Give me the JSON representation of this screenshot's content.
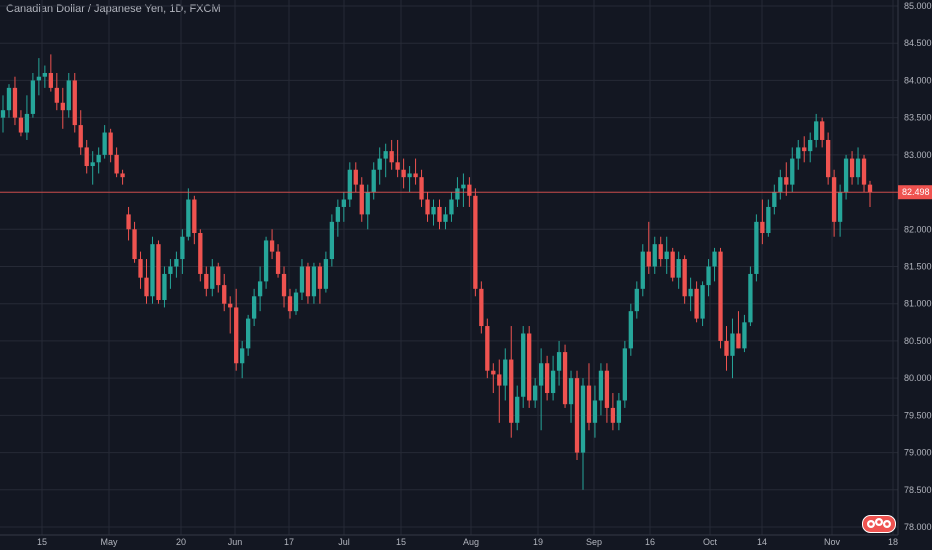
{
  "header": {
    "title": "Canadian Dollar / Japanese Yen, 1D, FXCM"
  },
  "colors": {
    "background": "#131722",
    "grid": "#262a36",
    "up": "#26a69a",
    "down": "#ef5350",
    "text": "#b2b5be",
    "price_line": "#ef5350"
  },
  "chart_data": {
    "type": "candlestick",
    "title": "Canadian Dollar / Japanese Yen, 1D, FXCM",
    "y_ticks": [
      "85.000",
      "84.500",
      "84.000",
      "83.500",
      "83.000",
      "82.500",
      "82.000",
      "81.500",
      "81.000",
      "80.500",
      "80.000",
      "79.500",
      "79.000",
      "78.500",
      "78.000"
    ],
    "ylim": [
      78.0,
      85.0
    ],
    "x_ticks": [
      "15",
      "May",
      "20",
      "Jun",
      "17",
      "Jul",
      "15",
      "Aug",
      "19",
      "Sep",
      "16",
      "Oct",
      "14",
      "Nov",
      "18"
    ],
    "last_price": "82.498",
    "grid": true,
    "candles": [
      [
        83.5,
        83.8,
        83.3,
        83.6
      ],
      [
        83.6,
        83.95,
        83.5,
        83.9
      ],
      [
        83.9,
        84.05,
        83.4,
        83.5
      ],
      [
        83.5,
        83.6,
        83.25,
        83.3
      ],
      [
        83.3,
        83.8,
        83.2,
        83.55
      ],
      [
        83.55,
        84.1,
        83.5,
        84.0
      ],
      [
        84.0,
        84.3,
        83.8,
        84.05
      ],
      [
        84.05,
        84.2,
        83.9,
        84.1
      ],
      [
        84.1,
        84.35,
        83.85,
        83.9
      ],
      [
        83.9,
        84.1,
        83.6,
        83.7
      ],
      [
        83.7,
        83.9,
        83.35,
        83.6
      ],
      [
        83.6,
        84.1,
        83.5,
        84.0
      ],
      [
        84.0,
        84.1,
        83.3,
        83.4
      ],
      [
        83.4,
        83.6,
        83.0,
        83.1
      ],
      [
        83.1,
        83.2,
        82.75,
        82.85
      ],
      [
        82.85,
        83.05,
        82.6,
        82.9
      ],
      [
        82.9,
        83.1,
        82.75,
        83.0
      ],
      [
        83.0,
        83.4,
        82.95,
        83.3
      ],
      [
        83.3,
        83.35,
        82.9,
        83.0
      ],
      [
        83.0,
        83.1,
        82.7,
        82.75
      ],
      [
        82.75,
        82.8,
        82.6,
        82.7
      ],
      [
        82.2,
        82.3,
        81.85,
        82.0
      ],
      [
        82.0,
        82.1,
        81.55,
        81.6
      ],
      [
        81.6,
        81.7,
        81.2,
        81.35
      ],
      [
        81.35,
        81.6,
        81.0,
        81.1
      ],
      [
        81.1,
        81.9,
        81.0,
        81.8
      ],
      [
        81.8,
        81.85,
        81.0,
        81.05
      ],
      [
        81.05,
        81.5,
        80.95,
        81.4
      ],
      [
        81.4,
        81.6,
        81.2,
        81.5
      ],
      [
        81.5,
        81.7,
        81.35,
        81.6
      ],
      [
        81.6,
        82.0,
        81.4,
        81.9
      ],
      [
        81.9,
        82.55,
        81.85,
        82.4
      ],
      [
        82.4,
        82.45,
        81.8,
        81.95
      ],
      [
        81.95,
        82.0,
        81.3,
        81.4
      ],
      [
        81.4,
        81.5,
        81.1,
        81.2
      ],
      [
        81.2,
        81.6,
        81.1,
        81.5
      ],
      [
        81.5,
        81.55,
        81.15,
        81.25
      ],
      [
        81.25,
        81.4,
        80.9,
        81.0
      ],
      [
        81.0,
        81.1,
        80.6,
        80.95
      ],
      [
        80.95,
        81.2,
        80.1,
        80.2
      ],
      [
        80.2,
        80.5,
        80.0,
        80.4
      ],
      [
        80.4,
        80.85,
        80.3,
        80.8
      ],
      [
        80.8,
        81.2,
        80.7,
        81.1
      ],
      [
        81.1,
        81.5,
        80.9,
        81.3
      ],
      [
        81.3,
        81.9,
        81.2,
        81.85
      ],
      [
        81.85,
        82.0,
        81.6,
        81.7
      ],
      [
        81.7,
        81.8,
        81.35,
        81.4
      ],
      [
        81.4,
        81.5,
        80.95,
        81.1
      ],
      [
        81.1,
        81.2,
        80.8,
        80.9
      ],
      [
        80.9,
        81.2,
        80.85,
        81.15
      ],
      [
        81.15,
        81.6,
        81.05,
        81.5
      ],
      [
        81.5,
        81.55,
        81.0,
        81.1
      ],
      [
        81.1,
        81.55,
        81.0,
        81.5
      ],
      [
        81.5,
        81.55,
        81.0,
        81.2
      ],
      [
        81.2,
        81.7,
        81.15,
        81.6
      ],
      [
        81.6,
        82.2,
        81.5,
        82.1
      ],
      [
        82.1,
        82.4,
        81.9,
        82.3
      ],
      [
        82.3,
        82.5,
        82.1,
        82.4
      ],
      [
        82.4,
        82.9,
        82.3,
        82.8
      ],
      [
        82.8,
        82.9,
        82.5,
        82.6
      ],
      [
        82.6,
        82.7,
        82.1,
        82.2
      ],
      [
        82.2,
        82.6,
        82.0,
        82.5
      ],
      [
        82.5,
        82.9,
        82.4,
        82.8
      ],
      [
        82.8,
        83.1,
        82.6,
        82.95
      ],
      [
        82.95,
        83.15,
        82.7,
        83.05
      ],
      [
        83.05,
        83.2,
        82.8,
        82.9
      ],
      [
        82.9,
        83.2,
        82.7,
        82.8
      ],
      [
        82.8,
        82.95,
        82.55,
        82.7
      ],
      [
        82.7,
        82.85,
        82.5,
        82.75
      ],
      [
        82.75,
        82.95,
        82.6,
        82.7
      ],
      [
        82.7,
        82.8,
        82.3,
        82.4
      ],
      [
        82.4,
        82.5,
        82.1,
        82.2
      ],
      [
        82.2,
        82.4,
        82.05,
        82.3
      ],
      [
        82.3,
        82.4,
        82.0,
        82.1
      ],
      [
        82.1,
        82.3,
        82.0,
        82.2
      ],
      [
        82.2,
        82.5,
        82.1,
        82.4
      ],
      [
        82.4,
        82.7,
        82.3,
        82.55
      ],
      [
        82.55,
        82.75,
        82.3,
        82.6
      ],
      [
        82.6,
        82.7,
        82.3,
        82.45
      ],
      [
        82.45,
        82.55,
        81.1,
        81.2
      ],
      [
        81.2,
        81.3,
        80.6,
        80.7
      ],
      [
        80.7,
        80.8,
        80.0,
        80.1
      ],
      [
        80.1,
        80.2,
        79.8,
        80.05
      ],
      [
        80.05,
        80.25,
        79.4,
        79.9
      ],
      [
        79.9,
        80.4,
        79.7,
        80.25
      ],
      [
        80.25,
        80.7,
        79.2,
        79.4
      ],
      [
        79.4,
        79.9,
        79.3,
        79.75
      ],
      [
        79.75,
        80.7,
        79.6,
        80.6
      ],
      [
        80.6,
        80.7,
        79.6,
        79.7
      ],
      [
        79.7,
        80.0,
        79.6,
        79.9
      ],
      [
        79.9,
        80.4,
        79.3,
        80.2
      ],
      [
        80.2,
        80.3,
        79.7,
        79.8
      ],
      [
        79.8,
        80.3,
        79.7,
        80.1
      ],
      [
        80.1,
        80.5,
        79.9,
        80.35
      ],
      [
        80.35,
        80.45,
        79.6,
        79.65
      ],
      [
        79.65,
        80.1,
        79.4,
        80.0
      ],
      [
        80.0,
        80.1,
        78.9,
        79.0
      ],
      [
        79.0,
        80.0,
        78.5,
        79.9
      ],
      [
        79.9,
        80.2,
        79.3,
        79.4
      ],
      [
        79.4,
        79.9,
        79.2,
        79.7
      ],
      [
        79.7,
        80.2,
        79.5,
        80.1
      ],
      [
        80.1,
        80.2,
        79.4,
        79.6
      ],
      [
        79.6,
        79.8,
        79.3,
        79.4
      ],
      [
        79.4,
        79.8,
        79.3,
        79.7
      ],
      [
        79.7,
        80.5,
        79.6,
        80.4
      ],
      [
        80.4,
        81.0,
        80.3,
        80.9
      ],
      [
        80.9,
        81.3,
        80.8,
        81.2
      ],
      [
        81.2,
        81.8,
        81.1,
        81.7
      ],
      [
        81.7,
        82.1,
        81.4,
        81.5
      ],
      [
        81.5,
        81.9,
        81.4,
        81.8
      ],
      [
        81.8,
        81.9,
        81.5,
        81.6
      ],
      [
        81.6,
        81.9,
        81.4,
        81.7
      ],
      [
        81.7,
        81.75,
        81.3,
        81.35
      ],
      [
        81.35,
        81.7,
        81.2,
        81.6
      ],
      [
        81.6,
        81.65,
        81.0,
        81.1
      ],
      [
        81.1,
        81.35,
        80.9,
        81.2
      ],
      [
        81.2,
        81.3,
        80.75,
        80.8
      ],
      [
        80.8,
        81.3,
        80.7,
        81.25
      ],
      [
        81.25,
        81.6,
        81.1,
        81.5
      ],
      [
        81.5,
        81.75,
        81.3,
        81.7
      ],
      [
        81.7,
        81.75,
        80.4,
        80.5
      ],
      [
        80.5,
        80.7,
        80.1,
        80.3
      ],
      [
        80.3,
        80.8,
        80.0,
        80.6
      ],
      [
        80.6,
        80.9,
        80.4,
        80.4
      ],
      [
        80.4,
        80.85,
        80.35,
        80.75
      ],
      [
        80.75,
        81.5,
        80.7,
        81.4
      ],
      [
        81.4,
        82.2,
        81.3,
        82.1
      ],
      [
        82.1,
        82.4,
        81.8,
        81.95
      ],
      [
        81.95,
        82.4,
        81.9,
        82.3
      ],
      [
        82.3,
        82.6,
        82.2,
        82.5
      ],
      [
        82.5,
        82.8,
        82.4,
        82.7
      ],
      [
        82.7,
        82.9,
        82.45,
        82.6
      ],
      [
        82.6,
        83.1,
        82.5,
        82.95
      ],
      [
        82.95,
        83.2,
        82.8,
        83.1
      ],
      [
        83.1,
        83.25,
        82.9,
        83.05
      ],
      [
        83.05,
        83.3,
        82.9,
        83.2
      ],
      [
        83.2,
        83.55,
        83.1,
        83.45
      ],
      [
        83.45,
        83.5,
        83.1,
        83.2
      ],
      [
        83.2,
        83.3,
        82.6,
        82.7
      ],
      [
        82.7,
        82.8,
        81.9,
        82.1
      ],
      [
        82.1,
        82.6,
        81.9,
        82.5
      ],
      [
        82.5,
        83.0,
        82.4,
        82.95
      ],
      [
        82.95,
        83.05,
        82.6,
        82.7
      ],
      [
        82.7,
        83.1,
        82.6,
        82.95
      ],
      [
        82.95,
        83.0,
        82.5,
        82.6
      ],
      [
        82.6,
        82.65,
        82.3,
        82.5
      ]
    ]
  }
}
